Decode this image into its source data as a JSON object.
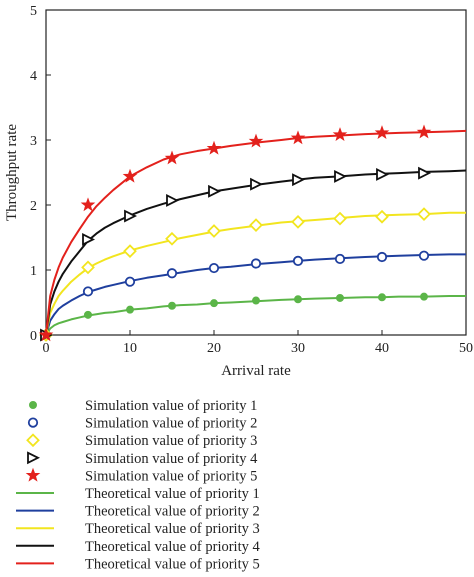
{
  "chart_data": {
    "type": "line",
    "xlabel": "Arrival rate",
    "ylabel": "Throughput rate",
    "xlim": [
      0,
      50
    ],
    "ylim": [
      0,
      5
    ],
    "xticks": [
      0,
      10,
      20,
      30,
      40,
      50
    ],
    "yticks": [
      0,
      1,
      2,
      3,
      4,
      5
    ],
    "grid": false,
    "legend_position": "bottom",
    "theory_x": [
      0,
      0.5,
      1,
      1.5,
      2,
      3,
      4,
      5,
      6,
      7,
      8,
      10,
      12,
      14,
      16,
      18,
      20,
      22,
      25,
      28,
      30,
      32,
      35,
      38,
      40,
      42,
      45,
      48,
      50
    ],
    "sim_x": [
      0,
      5,
      10,
      15,
      20,
      25,
      30,
      35,
      40,
      45
    ],
    "series": [
      {
        "name": "priority 1",
        "color": "#5bb548",
        "marker": "filled-circle",
        "sim_label": "Simulation value of priority 1",
        "theory_label": "Theoretical value of priority 1",
        "sim_values": [
          0,
          0.31,
          0.39,
          0.45,
          0.49,
          0.53,
          0.55,
          0.57,
          0.58,
          0.59
        ],
        "theory_values": [
          0,
          0.1,
          0.15,
          0.18,
          0.2,
          0.24,
          0.27,
          0.3,
          0.32,
          0.34,
          0.35,
          0.39,
          0.41,
          0.44,
          0.46,
          0.47,
          0.49,
          0.5,
          0.52,
          0.54,
          0.55,
          0.56,
          0.57,
          0.58,
          0.58,
          0.59,
          0.59,
          0.6,
          0.6
        ]
      },
      {
        "name": "priority 2",
        "color": "#1f3f9e",
        "marker": "open-circle",
        "sim_label": "Simulation value of priority 2",
        "theory_label": "Theoretical value of priority 2",
        "sim_values": [
          0,
          0.67,
          0.82,
          0.95,
          1.03,
          1.1,
          1.14,
          1.17,
          1.2,
          1.22
        ],
        "theory_values": [
          0,
          0.22,
          0.32,
          0.4,
          0.45,
          0.53,
          0.6,
          0.66,
          0.7,
          0.74,
          0.77,
          0.83,
          0.88,
          0.92,
          0.96,
          1.0,
          1.03,
          1.05,
          1.09,
          1.12,
          1.14,
          1.16,
          1.18,
          1.2,
          1.21,
          1.22,
          1.23,
          1.24,
          1.24
        ]
      },
      {
        "name": "priority 3",
        "color": "#f2e51f",
        "marker": "diamond",
        "sim_label": "Simulation value of priority 3",
        "theory_label": "Theoretical value of priority 3",
        "sim_values": [
          0,
          1.04,
          1.29,
          1.48,
          1.6,
          1.69,
          1.74,
          1.79,
          1.82,
          1.86
        ],
        "theory_values": [
          0,
          0.34,
          0.48,
          0.6,
          0.68,
          0.82,
          0.93,
          1.03,
          1.1,
          1.16,
          1.21,
          1.3,
          1.37,
          1.43,
          1.49,
          1.54,
          1.59,
          1.63,
          1.68,
          1.73,
          1.75,
          1.77,
          1.8,
          1.83,
          1.84,
          1.85,
          1.86,
          1.88,
          1.88
        ]
      },
      {
        "name": "priority 4",
        "color": "#111111",
        "marker": "triangle-right",
        "sim_label": "Simulation value of priority 4",
        "theory_label": "Theoretical value of priority 4",
        "sim_values": [
          0,
          1.47,
          1.83,
          2.07,
          2.21,
          2.32,
          2.39,
          2.44,
          2.47,
          2.49
        ],
        "theory_values": [
          0,
          0.47,
          0.67,
          0.82,
          0.94,
          1.13,
          1.29,
          1.45,
          1.56,
          1.65,
          1.72,
          1.84,
          1.94,
          2.02,
          2.09,
          2.15,
          2.21,
          2.25,
          2.31,
          2.36,
          2.39,
          2.42,
          2.44,
          2.47,
          2.48,
          2.49,
          2.51,
          2.52,
          2.53
        ]
      },
      {
        "name": "priority 5",
        "color": "#e3211c",
        "marker": "star",
        "sim_label": "Simulation value of priority 5",
        "theory_label": "Theoretical value of priority 5",
        "sim_values": [
          0,
          2.0,
          2.44,
          2.72,
          2.87,
          2.98,
          3.03,
          3.08,
          3.11,
          3.12
        ],
        "theory_values": [
          0,
          0.6,
          0.85,
          1.04,
          1.19,
          1.43,
          1.63,
          1.82,
          1.98,
          2.11,
          2.23,
          2.44,
          2.58,
          2.7,
          2.78,
          2.83,
          2.87,
          2.91,
          2.96,
          3.0,
          3.03,
          3.05,
          3.07,
          3.09,
          3.1,
          3.11,
          3.12,
          3.13,
          3.14
        ]
      }
    ]
  }
}
